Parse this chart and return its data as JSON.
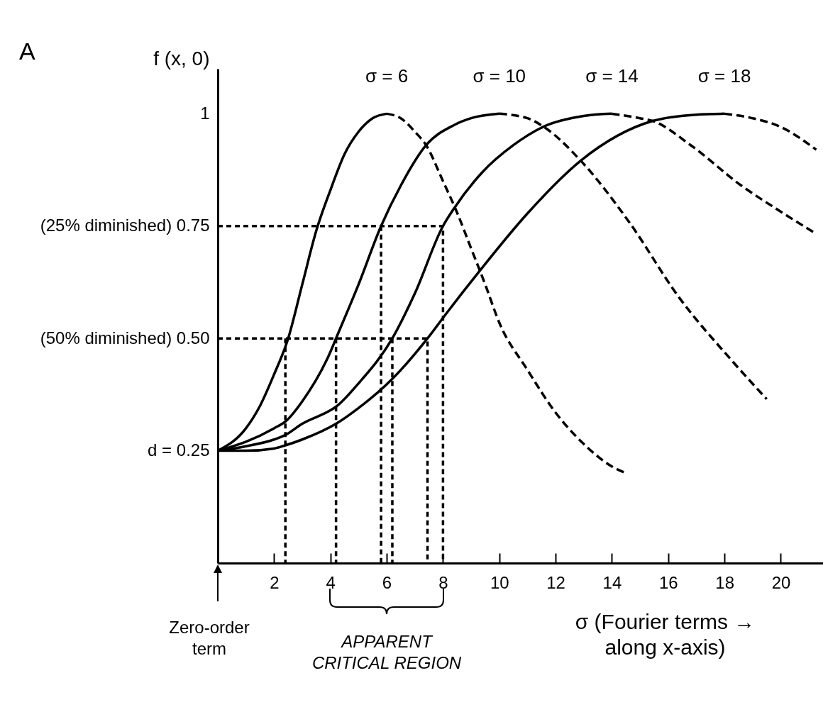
{
  "chart_data": {
    "type": "line",
    "xlabel": "σ (Fourier terms →\nalong x-axis)",
    "ylabel": "f (x, 0)",
    "xlim": [
      0,
      21.5
    ],
    "ylim": [
      0,
      1.1
    ],
    "xticks": [
      2,
      4,
      6,
      8,
      10,
      12,
      14,
      16,
      18,
      20
    ],
    "yticks": [
      {
        "value": 0.25,
        "label": "d = 0.25"
      },
      {
        "value": 0.5,
        "label": "(50% diminished) 0.50"
      },
      {
        "value": 0.75,
        "label": "(25% diminished) 0.75"
      },
      {
        "value": 1,
        "label": "1"
      }
    ],
    "annotations": [
      "A",
      "Zero-order\nterm",
      "APPARENT\nCRITICAL REGION"
    ],
    "series": [
      {
        "name": "σ = 6",
        "color": "#000000",
        "line_style": "solid",
        "x": [
          0,
          1,
          1.5,
          2,
          2.5,
          3,
          3.5,
          4,
          4.5,
          5,
          5.5,
          6
        ],
        "values": [
          0.25,
          0.3,
          0.35,
          0.42,
          0.5,
          0.62,
          0.74,
          0.83,
          0.91,
          0.96,
          0.99,
          1
        ]
      },
      {
        "color": "#000000",
        "line_style": "dashed",
        "x": [
          6,
          6.5,
          7,
          7.4,
          8,
          8.5,
          9,
          9.5,
          10,
          11,
          12,
          13,
          14,
          14.5
        ],
        "values": [
          1,
          0.99,
          0.96,
          0.93,
          0.85,
          0.78,
          0.7,
          0.62,
          0.535,
          0.43,
          0.335,
          0.265,
          0.215,
          0.2
        ]
      },
      {
        "name": "σ = 10",
        "color": "#000000",
        "line_style": "solid",
        "x": [
          0,
          1,
          2,
          2.4,
          3,
          4,
          4.2,
          5,
          5.8,
          6.5,
          7.4,
          8.4,
          9,
          10
        ],
        "values": [
          0.25,
          0.27,
          0.3,
          0.315,
          0.36,
          0.47,
          0.5,
          0.62,
          0.75,
          0.84,
          0.93,
          0.975,
          0.99,
          1
        ]
      },
      {
        "color": "#000000",
        "line_style": "dashed",
        "x": [
          10,
          11,
          11.6,
          12.9,
          14.6,
          16.4,
          18.2,
          19.5
        ],
        "values": [
          1,
          0.99,
          0.97,
          0.895,
          0.76,
          0.59,
          0.455,
          0.365
        ]
      },
      {
        "name": "σ = 14",
        "color": "#000000",
        "line_style": "solid",
        "x": [
          0,
          1,
          2,
          2.4,
          3,
          4,
          4.2,
          5,
          6.2,
          7,
          8,
          8.4,
          9.4,
          10.5,
          11.6,
          13,
          14
        ],
        "values": [
          0.25,
          0.26,
          0.275,
          0.285,
          0.31,
          0.34,
          0.348,
          0.4,
          0.5,
          0.6,
          0.75,
          0.79,
          0.87,
          0.93,
          0.972,
          0.995,
          1
        ]
      },
      {
        "color": "#000000",
        "line_style": "dashed",
        "x": [
          14,
          15,
          15.45,
          16.8,
          18.6,
          19.95,
          21.25
        ],
        "values": [
          1,
          0.99,
          0.984,
          0.93,
          0.84,
          0.784,
          0.733
        ]
      },
      {
        "name": "σ = 18",
        "color": "#000000",
        "line_style": "solid",
        "x": [
          0,
          1,
          2,
          2.4,
          3,
          4.2,
          5,
          6.2,
          7.45,
          8.1,
          9.3,
          11,
          12.9,
          15.45,
          17,
          18
        ],
        "values": [
          0.25,
          0.25,
          0.255,
          0.262,
          0.275,
          0.31,
          0.345,
          0.41,
          0.5,
          0.554,
          0.65,
          0.778,
          0.896,
          0.984,
          0.998,
          1
        ]
      },
      {
        "color": "#000000",
        "line_style": "dashed",
        "x": [
          18,
          19,
          19.95,
          21.26
        ],
        "values": [
          1,
          0.99,
          0.972,
          0.92
        ]
      },
      {
        "color": "#000000",
        "line_style": "dotted",
        "x": [
          0,
          8,
          8
        ],
        "values": [
          0.75,
          0.75,
          0
        ]
      },
      {
        "color": "#000000",
        "line_style": "dotted",
        "x": [
          0,
          7.45,
          7.45
        ],
        "values": [
          0.5,
          0.5,
          0
        ]
      },
      {
        "color": "#000000",
        "line_style": "dotted",
        "x": [
          2.4,
          2.4
        ],
        "values": [
          0.5,
          0
        ]
      },
      {
        "color": "#000000",
        "line_style": "dotted",
        "x": [
          4.2,
          4.2
        ],
        "values": [
          0.5,
          0
        ]
      },
      {
        "color": "#000000",
        "line_style": "dotted",
        "x": [
          6.2,
          6.2
        ],
        "values": [
          0.5,
          0
        ]
      },
      {
        "color": "#000000",
        "line_style": "dotted",
        "x": [
          5.8,
          5.8
        ],
        "values": [
          0.75,
          0
        ]
      }
    ]
  }
}
